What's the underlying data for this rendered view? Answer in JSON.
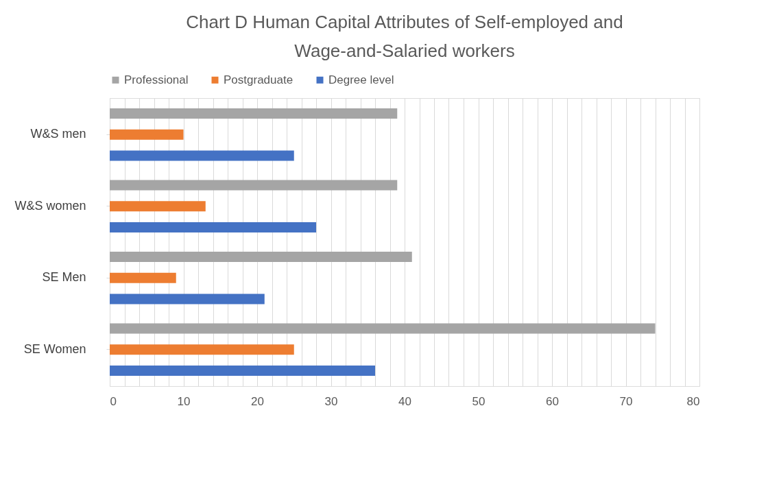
{
  "chart_data": {
    "type": "bar",
    "orientation": "horizontal",
    "title": "Chart D Human Capital Attributes of Self-employed and Wage-and-Salaried workers",
    "categories": [
      "W&S men",
      "W&S women",
      "SE Men",
      "SE Women"
    ],
    "series": [
      {
        "name": "Professional",
        "color": "#a5a5a5",
        "values": [
          39,
          39,
          41,
          74
        ]
      },
      {
        "name": "Postgraduate",
        "color": "#ed7d31",
        "values": [
          10,
          13,
          9,
          25
        ]
      },
      {
        "name": "Degree level",
        "color": "#4472c4",
        "values": [
          25,
          28,
          21,
          36
        ]
      }
    ],
    "xlim": [
      0,
      80
    ],
    "xticks": [
      0,
      {
        "value": 2,
        "label": null
      },
      {
        "value": 4,
        "label": null
      },
      {
        "value": 6,
        "label": null
      },
      {
        "value": 8,
        "label": null
      },
      10,
      {
        "value": 12,
        "label": null
      },
      {
        "value": 14,
        "label": null
      },
      {
        "value": 16,
        "label": null
      },
      {
        "value": 18,
        "label": null
      },
      20,
      {
        "value": 22,
        "label": null
      },
      {
        "value": 24,
        "label": null
      },
      {
        "value": 26,
        "label": null
      },
      {
        "value": 28,
        "label": null
      },
      30,
      {
        "value": 32,
        "label": null
      },
      {
        "value": 34,
        "label": null
      },
      {
        "value": 36,
        "label": null
      },
      {
        "value": 38,
        "label": null
      },
      40,
      {
        "value": 42,
        "label": null
      },
      {
        "value": 44,
        "label": null
      },
      {
        "value": 46,
        "label": null
      },
      {
        "value": 48,
        "label": null
      },
      50,
      {
        "value": 52,
        "label": null
      },
      {
        "value": 54,
        "label": null
      },
      {
        "value": 56,
        "label": null
      },
      {
        "value": 58,
        "label": null
      },
      60,
      {
        "value": 62,
        "label": null
      },
      {
        "value": 64,
        "label": null
      },
      {
        "value": 66,
        "label": null
      },
      {
        "value": 68,
        "label": null
      },
      70,
      {
        "value": 72,
        "label": null
      },
      {
        "value": 74,
        "label": null
      },
      {
        "value": 76,
        "label": null
      },
      {
        "value": 78,
        "label": null
      },
      80
    ],
    "grid": "x",
    "legend": "top"
  }
}
